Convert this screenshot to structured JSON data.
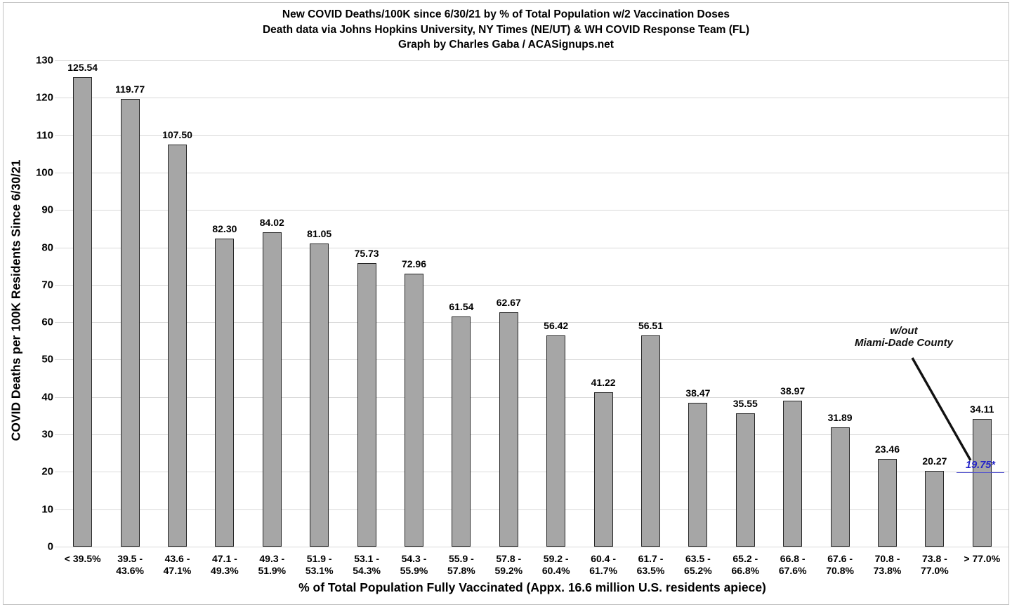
{
  "chart_data": {
    "type": "bar",
    "title": "New COVID Deaths/100K since 6/30/21 by % of Total Population w/2 Vaccination Doses",
    "subtitle": "Death data via Johns Hopkins University, NY Times (NE/UT) & WH COVID Response Team (FL)",
    "credit": "Graph by Charles Gaba / ACASignups.net",
    "xlabel": "% of Total Population Fully Vaccinated (Appx. 16.6 million U.S. residents apiece)",
    "ylabel": "COVID Deaths per 100K Residents Since 6/30/21",
    "ylim": [
      0,
      130
    ],
    "ytick_interval": 10,
    "grid": true,
    "legend": "none",
    "bar_color": "#a6a6a6",
    "bar_border_color": "#262626",
    "gridline_color": "#d9d9d9",
    "categories": [
      "< 39.5%",
      "39.5 -\n43.6%",
      "43.6 -\n47.1%",
      "47.1 -\n49.3%",
      "49.3 -\n51.9%",
      "51.9 -\n53.1%",
      "53.1 -\n54.3%",
      "54.3 -\n55.9%",
      "55.9 -\n57.8%",
      "57.8 -\n59.2%",
      "59.2 -\n60.4%",
      "60.4 -\n61.7%",
      "61.7 -\n63.5%",
      "63.5 -\n65.2%",
      "65.2 -\n66.8%",
      "66.8 -\n67.6%",
      "67.6 -\n70.8%",
      "70.8 -\n73.8%",
      "73.8 -\n77.0%",
      "> 77.0%"
    ],
    "values": [
      125.54,
      119.77,
      107.5,
      82.3,
      84.02,
      81.05,
      75.73,
      72.96,
      61.54,
      62.67,
      56.42,
      41.22,
      56.51,
      38.47,
      35.55,
      38.97,
      31.89,
      23.46,
      20.27,
      34.11
    ],
    "annotation": {
      "note_line1": "w/out",
      "note_line2": "Miami-Dade County",
      "adjusted_value": 19.75,
      "adjusted_value_label": "19.75*",
      "applies_to_category": "> 77.0%",
      "color": "#2323c8"
    }
  }
}
